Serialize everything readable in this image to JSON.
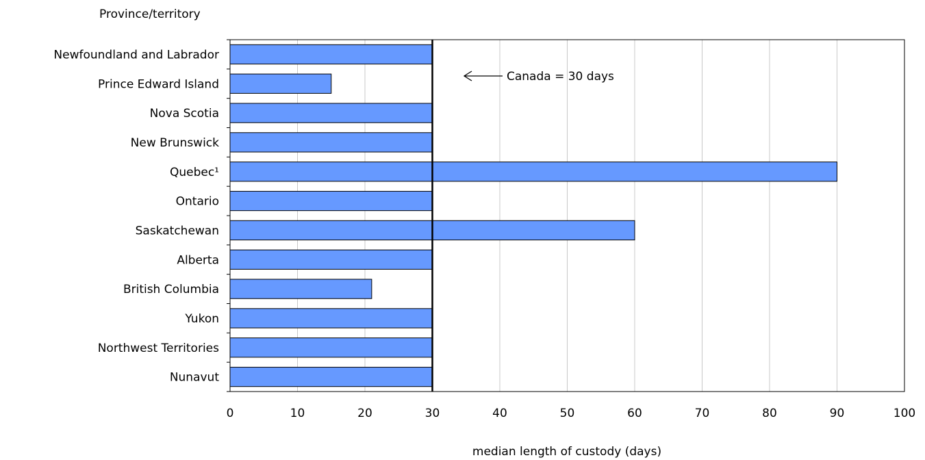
{
  "chart_data": {
    "type": "bar",
    "orientation": "horizontal",
    "ylabel": "Province/territory",
    "xlabel": "median length of custody (days)",
    "categories": [
      "Newfoundland and Labrador",
      "Prince Edward Island",
      "Nova Scotia",
      "New Brunswick",
      "Quebec¹",
      "Ontario",
      "Saskatchewan",
      "Alberta",
      "British Columbia",
      "Yukon",
      "Northwest Territories",
      "Nunavut"
    ],
    "values": [
      30,
      15,
      30,
      30,
      90,
      30,
      60,
      30,
      21,
      30,
      30,
      30
    ],
    "xlim": [
      0,
      100
    ],
    "xticks": [
      0,
      10,
      20,
      30,
      40,
      50,
      60,
      70,
      80,
      90,
      100
    ],
    "grid": "vertical",
    "bar_color": "#6699ff",
    "reference_line": {
      "value": 30,
      "label": "Canada = 30 days"
    }
  }
}
